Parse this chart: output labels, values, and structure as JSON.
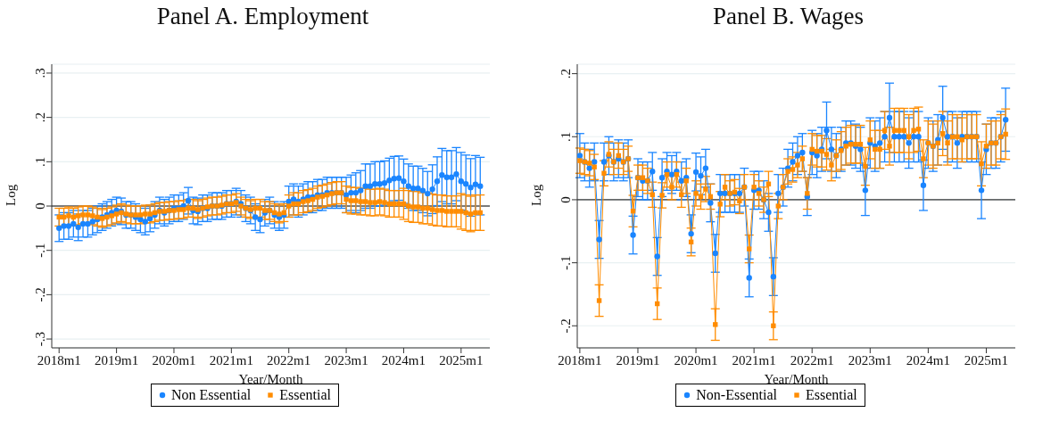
{
  "chart_data": [
    {
      "type": "line",
      "title": "Panel A. Employment",
      "xlabel": "Year/Month",
      "ylabel": "Log",
      "legend": "bottom",
      "grid": "y",
      "xlim": [
        "2017-11-15",
        "2025-07"
      ],
      "xticks": [
        {
          "value": "2018-01",
          "label": "2018m1"
        },
        {
          "value": "2019-01",
          "label": "2019m1"
        },
        {
          "value": "2020-01",
          "label": "2020m1"
        },
        {
          "value": "2021-01",
          "label": "2021m1"
        },
        {
          "value": "2022-01",
          "label": "2022m1"
        },
        {
          "value": "2023-01",
          "label": "2023m1"
        },
        {
          "value": "2024-01",
          "label": "2024m1"
        },
        {
          "value": "2025-01",
          "label": "2025m1"
        }
      ],
      "ylim": [
        -0.32,
        0.32
      ],
      "yticks": [
        {
          "value": -0.3,
          "label": "-.3"
        },
        {
          "value": -0.2,
          "label": "-.2"
        },
        {
          "value": -0.1,
          "label": "-.1"
        },
        0,
        {
          "value": 0.1,
          "label": ".1"
        },
        {
          "value": 0.2,
          "label": ".2"
        },
        {
          "value": 0.3,
          "label": ".3"
        }
      ],
      "ref_lines": [
        {
          "axis": "y",
          "value": 0,
          "color": "#000000"
        }
      ],
      "x": [
        "2018-01",
        "2018-02",
        "2018-03",
        "2018-04",
        "2018-05",
        "2018-06",
        "2018-07",
        "2018-08",
        "2018-09",
        "2018-10",
        "2018-11",
        "2018-12",
        "2019-01",
        "2019-02",
        "2019-03",
        "2019-04",
        "2019-05",
        "2019-06",
        "2019-07",
        "2019-08",
        "2019-09",
        "2019-10",
        "2019-11",
        "2019-12",
        "2020-01",
        "2020-02",
        "2020-03",
        "2020-04",
        "2020-05",
        "2020-06",
        "2020-07",
        "2020-08",
        "2020-09",
        "2020-10",
        "2020-11",
        "2020-12",
        "2021-01",
        "2021-02",
        "2021-03",
        "2021-04",
        "2021-05",
        "2021-06",
        "2021-07",
        "2021-08",
        "2021-09",
        "2021-10",
        "2021-11",
        "2021-12",
        "2022-01",
        "2022-02",
        "2022-03",
        "2022-04",
        "2022-05",
        "2022-06",
        "2022-07",
        "2022-08",
        "2022-09",
        "2022-10",
        "2022-11",
        "2022-12",
        "2023-01",
        "2023-02",
        "2023-03",
        "2023-04",
        "2023-05",
        "2023-06",
        "2023-07",
        "2023-08",
        "2023-09",
        "2023-10",
        "2023-11",
        "2023-12",
        "2024-01",
        "2024-02",
        "2024-03",
        "2024-04",
        "2024-05",
        "2024-06",
        "2024-07",
        "2024-08",
        "2024-09",
        "2024-10",
        "2024-11",
        "2024-12",
        "2025-01",
        "2025-02",
        "2025-03",
        "2025-04",
        "2025-05"
      ],
      "series": [
        {
          "name": "Non Essential",
          "color": "#1a85ff",
          "marker": "circle",
          "values": [
            -0.05,
            -0.045,
            -0.045,
            -0.04,
            -0.048,
            -0.04,
            -0.04,
            -0.035,
            -0.03,
            -0.025,
            -0.02,
            -0.015,
            -0.01,
            -0.012,
            -0.02,
            -0.02,
            -0.025,
            -0.03,
            -0.035,
            -0.028,
            -0.02,
            -0.01,
            -0.015,
            -0.01,
            -0.005,
            -0.005,
            0.0,
            0.012,
            -0.01,
            -0.012,
            -0.005,
            -0.005,
            0.0,
            0.0,
            0.0,
            0.005,
            0.005,
            0.01,
            0.005,
            -0.005,
            -0.01,
            -0.025,
            -0.03,
            -0.015,
            -0.01,
            -0.02,
            -0.025,
            -0.02,
            0.01,
            0.015,
            0.01,
            0.015,
            0.02,
            0.02,
            0.025,
            0.025,
            0.03,
            0.03,
            0.03,
            0.03,
            0.025,
            0.03,
            0.03,
            0.035,
            0.045,
            0.045,
            0.05,
            0.05,
            0.052,
            0.058,
            0.062,
            0.063,
            0.056,
            0.045,
            0.04,
            0.04,
            0.035,
            0.028,
            0.038,
            0.056,
            0.07,
            0.065,
            0.065,
            0.072,
            0.056,
            0.05,
            0.042,
            0.049,
            0.045
          ],
          "errors": [
            0.03,
            0.03,
            0.03,
            0.03,
            0.03,
            0.03,
            0.03,
            0.03,
            0.03,
            0.03,
            0.03,
            0.03,
            0.03,
            0.03,
            0.03,
            0.03,
            0.03,
            0.03,
            0.03,
            0.03,
            0.03,
            0.03,
            0.03,
            0.03,
            0.03,
            0.03,
            0.03,
            0.03,
            0.03,
            0.03,
            0.03,
            0.03,
            0.03,
            0.03,
            0.03,
            0.03,
            0.03,
            0.03,
            0.03,
            0.03,
            0.03,
            0.03,
            0.03,
            0.03,
            0.03,
            0.03,
            0.03,
            0.03,
            0.035,
            0.035,
            0.035,
            0.035,
            0.035,
            0.035,
            0.035,
            0.035,
            0.035,
            0.035,
            0.035,
            0.035,
            0.04,
            0.04,
            0.045,
            0.045,
            0.05,
            0.05,
            0.05,
            0.05,
            0.05,
            0.05,
            0.05,
            0.05,
            0.05,
            0.05,
            0.05,
            0.05,
            0.05,
            0.05,
            0.055,
            0.055,
            0.06,
            0.06,
            0.06,
            0.06,
            0.065,
            0.065,
            0.065,
            0.065,
            0.065
          ]
        },
        {
          "name": "Essential",
          "color": "#ff8c00",
          "marker": "square",
          "values": [
            -0.025,
            -0.025,
            -0.022,
            -0.025,
            -0.022,
            -0.02,
            -0.02,
            -0.022,
            -0.025,
            -0.028,
            -0.025,
            -0.022,
            -0.018,
            -0.015,
            -0.018,
            -0.02,
            -0.02,
            -0.02,
            -0.018,
            -0.018,
            -0.015,
            -0.012,
            -0.012,
            -0.01,
            -0.01,
            -0.008,
            -0.008,
            -0.005,
            -0.005,
            -0.008,
            -0.005,
            -0.002,
            0.0,
            0.0,
            0.002,
            0.005,
            0.005,
            0.008,
            0.0,
            -0.005,
            -0.008,
            -0.005,
            -0.005,
            -0.01,
            -0.01,
            -0.015,
            -0.018,
            -0.015,
            0.0,
            0.005,
            0.005,
            0.01,
            0.012,
            0.015,
            0.02,
            0.022,
            0.025,
            0.028,
            0.03,
            0.03,
            0.015,
            0.012,
            0.012,
            0.01,
            0.01,
            0.008,
            0.008,
            0.01,
            0.008,
            0.005,
            0.005,
            0.005,
            0.005,
            0.0,
            -0.002,
            -0.002,
            -0.005,
            -0.005,
            -0.008,
            -0.01,
            -0.01,
            -0.012,
            -0.012,
            -0.012,
            -0.012,
            -0.015,
            -0.018,
            -0.015,
            -0.015
          ],
          "errors": [
            0.02,
            0.02,
            0.02,
            0.02,
            0.02,
            0.02,
            0.02,
            0.02,
            0.02,
            0.02,
            0.02,
            0.02,
            0.02,
            0.02,
            0.02,
            0.02,
            0.02,
            0.02,
            0.02,
            0.02,
            0.02,
            0.02,
            0.02,
            0.02,
            0.02,
            0.02,
            0.02,
            0.02,
            0.02,
            0.02,
            0.02,
            0.02,
            0.02,
            0.02,
            0.02,
            0.02,
            0.02,
            0.02,
            0.02,
            0.02,
            0.02,
            0.02,
            0.02,
            0.02,
            0.02,
            0.02,
            0.02,
            0.02,
            0.025,
            0.025,
            0.025,
            0.025,
            0.025,
            0.025,
            0.025,
            0.025,
            0.025,
            0.025,
            0.025,
            0.025,
            0.03,
            0.03,
            0.03,
            0.03,
            0.03,
            0.03,
            0.03,
            0.03,
            0.03,
            0.03,
            0.03,
            0.03,
            0.035,
            0.035,
            0.035,
            0.035,
            0.035,
            0.035,
            0.035,
            0.035,
            0.035,
            0.035,
            0.035,
            0.035,
            0.04,
            0.04,
            0.04,
            0.04,
            0.04
          ]
        }
      ]
    },
    {
      "type": "line",
      "title": "Panel B. Wages",
      "xlabel": "Year/Month",
      "ylabel": "Log",
      "legend": "bottom",
      "grid": "y",
      "xlim": [
        "2017-12-15",
        "2025-07"
      ],
      "xticks": [
        {
          "value": "2018-01",
          "label": "2018m1"
        },
        {
          "value": "2019-01",
          "label": "2019m1"
        },
        {
          "value": "2020-01",
          "label": "2020m1"
        },
        {
          "value": "2021-01",
          "label": "2021m1"
        },
        {
          "value": "2022-01",
          "label": "2022m1"
        },
        {
          "value": "2023-01",
          "label": "2023m1"
        },
        {
          "value": "2024-01",
          "label": "2024m1"
        },
        {
          "value": "2025-01",
          "label": "2025m1"
        }
      ],
      "ylim": [
        -0.235,
        0.215
      ],
      "yticks": [
        {
          "value": -0.2,
          "label": "-.2"
        },
        {
          "value": -0.1,
          "label": "-.1"
        },
        0,
        {
          "value": 0.1,
          "label": ".1"
        },
        {
          "value": 0.2,
          "label": ".2"
        }
      ],
      "ref_lines": [
        {
          "axis": "y",
          "value": 0,
          "color": "#000000"
        }
      ],
      "x": [
        "2018-01",
        "2018-02",
        "2018-03",
        "2018-04",
        "2018-05",
        "2018-06",
        "2018-07",
        "2018-08",
        "2018-09",
        "2018-10",
        "2018-11",
        "2018-12",
        "2019-01",
        "2019-02",
        "2019-03",
        "2019-04",
        "2019-05",
        "2019-06",
        "2019-07",
        "2019-08",
        "2019-09",
        "2019-10",
        "2019-11",
        "2019-12",
        "2020-01",
        "2020-02",
        "2020-03",
        "2020-04",
        "2020-05",
        "2020-06",
        "2020-07",
        "2020-08",
        "2020-09",
        "2020-10",
        "2020-11",
        "2020-12",
        "2021-01",
        "2021-02",
        "2021-03",
        "2021-04",
        "2021-05",
        "2021-06",
        "2021-07",
        "2021-08",
        "2021-09",
        "2021-10",
        "2021-11",
        "2021-12",
        "2022-01",
        "2022-02",
        "2022-03",
        "2022-04",
        "2022-05",
        "2022-06",
        "2022-07",
        "2022-08",
        "2022-09",
        "2022-10",
        "2022-11",
        "2022-12",
        "2023-01",
        "2023-02",
        "2023-03",
        "2023-04",
        "2023-05",
        "2023-06",
        "2023-07",
        "2023-08",
        "2023-09",
        "2023-10",
        "2023-11",
        "2023-12",
        "2024-01",
        "2024-02",
        "2024-03",
        "2024-04",
        "2024-05",
        "2024-06",
        "2024-07",
        "2024-08",
        "2024-09",
        "2024-10",
        "2024-11",
        "2024-12",
        "2025-01",
        "2025-02",
        "2025-03",
        "2025-04",
        "2025-05"
      ],
      "series": [
        {
          "name": "Non-Essential",
          "color": "#1a85ff",
          "marker": "circle",
          "values": [
            0.07,
            0.06,
            0.05,
            0.06,
            -0.063,
            0.06,
            0.07,
            0.06,
            0.065,
            0.06,
            0.065,
            -0.056,
            0.035,
            0.03,
            0.03,
            0.045,
            -0.09,
            0.035,
            0.045,
            0.04,
            0.045,
            0.03,
            0.035,
            -0.054,
            0.044,
            0.038,
            0.05,
            -0.005,
            -0.085,
            0.01,
            0.01,
            0.01,
            0.01,
            0.01,
            0.02,
            -0.124,
            0.015,
            0.015,
            0.0,
            -0.02,
            -0.122,
            0.01,
            0.02,
            0.05,
            0.06,
            0.07,
            0.075,
            0.005,
            0.075,
            0.07,
            0.08,
            0.11,
            0.08,
            0.07,
            0.08,
            0.09,
            0.09,
            0.085,
            0.08,
            0.015,
            0.09,
            0.085,
            0.09,
            0.1,
            0.13,
            0.1,
            0.1,
            0.1,
            0.09,
            0.1,
            0.1,
            0.023,
            0.09,
            0.085,
            0.095,
            0.13,
            0.1,
            0.1,
            0.09,
            0.1,
            0.1,
            0.1,
            0.1,
            0.015,
            0.08,
            0.09,
            0.09,
            0.1,
            0.127
          ],
          "errors": [
            0.035,
            0.03,
            0.03,
            0.03,
            0.03,
            0.03,
            0.03,
            0.03,
            0.03,
            0.03,
            0.03,
            0.03,
            0.03,
            0.03,
            0.03,
            0.03,
            0.03,
            0.03,
            0.03,
            0.03,
            0.03,
            0.03,
            0.03,
            0.03,
            0.03,
            0.03,
            0.03,
            0.03,
            0.03,
            0.03,
            0.03,
            0.03,
            0.03,
            0.03,
            0.03,
            0.03,
            0.03,
            0.03,
            0.03,
            0.03,
            0.03,
            0.03,
            0.03,
            0.03,
            0.03,
            0.03,
            0.03,
            0.03,
            0.035,
            0.035,
            0.035,
            0.045,
            0.035,
            0.035,
            0.035,
            0.035,
            0.035,
            0.035,
            0.035,
            0.04,
            0.04,
            0.04,
            0.04,
            0.04,
            0.055,
            0.04,
            0.04,
            0.04,
            0.04,
            0.04,
            0.04,
            0.04,
            0.04,
            0.04,
            0.04,
            0.05,
            0.04,
            0.04,
            0.04,
            0.04,
            0.04,
            0.04,
            0.04,
            0.045,
            0.04,
            0.04,
            0.04,
            0.04,
            0.05
          ]
        },
        {
          "name": "Essential",
          "color": "#ff8c00",
          "marker": "square",
          "values": [
            0.062,
            0.06,
            0.058,
            0.052,
            -0.16,
            0.042,
            0.072,
            0.06,
            0.07,
            0.06,
            0.065,
            -0.018,
            0.035,
            0.035,
            0.03,
            0.008,
            -0.165,
            0.007,
            0.04,
            0.02,
            0.04,
            0.008,
            0.03,
            -0.067,
            0.01,
            0.005,
            0.017,
            0.005,
            -0.198,
            -0.007,
            0.02,
            0.01,
            0.012,
            -0.002,
            0.02,
            -0.078,
            0.02,
            0.01,
            0.0,
            0.025,
            -0.2,
            -0.01,
            0.02,
            0.045,
            0.048,
            0.055,
            0.065,
            0.01,
            0.08,
            0.077,
            0.077,
            0.072,
            0.055,
            0.07,
            0.078,
            0.085,
            0.088,
            0.088,
            0.088,
            0.053,
            0.095,
            0.08,
            0.08,
            0.11,
            0.085,
            0.11,
            0.11,
            0.11,
            0.1,
            0.11,
            0.112,
            0.065,
            0.09,
            0.085,
            0.09,
            0.105,
            0.09,
            0.1,
            0.1,
            0.095,
            0.1,
            0.1,
            0.1,
            0.057,
            0.085,
            0.09,
            0.09,
            0.1,
            0.104
          ],
          "errors": [
            0.02,
            0.02,
            0.02,
            0.02,
            0.025,
            0.02,
            0.02,
            0.02,
            0.02,
            0.02,
            0.02,
            0.025,
            0.02,
            0.02,
            0.02,
            0.02,
            0.025,
            0.02,
            0.02,
            0.02,
            0.02,
            0.02,
            0.02,
            0.022,
            0.02,
            0.02,
            0.02,
            0.02,
            0.025,
            0.02,
            0.02,
            0.02,
            0.02,
            0.02,
            0.02,
            0.022,
            0.02,
            0.02,
            0.02,
            0.02,
            0.022,
            0.02,
            0.02,
            0.02,
            0.02,
            0.02,
            0.02,
            0.025,
            0.025,
            0.025,
            0.025,
            0.025,
            0.025,
            0.025,
            0.03,
            0.03,
            0.03,
            0.03,
            0.03,
            0.03,
            0.03,
            0.03,
            0.03,
            0.03,
            0.03,
            0.035,
            0.035,
            0.035,
            0.035,
            0.035,
            0.035,
            0.03,
            0.035,
            0.035,
            0.035,
            0.035,
            0.035,
            0.035,
            0.035,
            0.035,
            0.035,
            0.035,
            0.035,
            0.035,
            0.035,
            0.035,
            0.035,
            0.035,
            0.04
          ]
        }
      ]
    }
  ]
}
